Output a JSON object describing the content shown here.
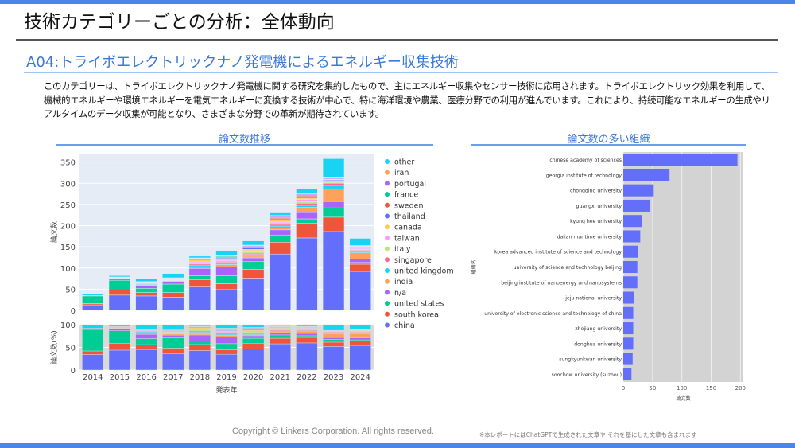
{
  "slide": {
    "title": "技術カテゴリーごとの分析：全体動向",
    "subtitle": "A04:トライボエレクトリックナノ発電機によるエネルギー収集技術",
    "description": "このカテゴリーは、トライボエレクトリックナノ発電機に関する研究を集約したもので、主にエネルギー収集やセンサー技術に応用されます。トライボエレクトリック効果を利用して、機械的エネルギーや環境エネルギーを電気エネルギーに変換する技術が中心で、特に海洋環境や農業、医療分野での利用が進んでいます。これにより、持続可能なエネルギーの生成やリアルタイムのデータ収集が可能となり、さまざまな分野での革新が期待されています。",
    "left_heading": "論文数推移",
    "right_heading": "論文数の多い組織",
    "copyright": "Copyright © Linkers Corporation. All rights reserved.",
    "note": "※本レポートにはChatGPTで生成された文章や それを基にした文章も含まれます",
    "accent_color": "#4a86e8"
  },
  "chart_data": [
    {
      "type": "bar",
      "stacked": true,
      "xlabel": "発表年",
      "ylabel": "論文数",
      "ylim": [
        0,
        370
      ],
      "yticks": [
        0,
        50,
        100,
        150,
        200,
        250,
        300,
        350
      ],
      "categories": [
        "2014",
        "2015",
        "2016",
        "2017",
        "2018",
        "2019",
        "2020",
        "2021",
        "2022",
        "2023",
        "2024"
      ],
      "legend_placement": "right",
      "percent_panel": {
        "ylabel": "論文数(%)",
        "ylim": [
          0,
          100
        ],
        "yticks": [
          0,
          50,
          100
        ]
      },
      "series": [
        {
          "name": "china",
          "color": "#636efa",
          "values": [
            13,
            36,
            34,
            31,
            55,
            49,
            76,
            133,
            171,
            186,
            92
          ]
        },
        {
          "name": "south korea",
          "color": "#ef553b",
          "values": [
            3,
            12,
            8,
            11,
            17,
            14,
            21,
            28,
            35,
            34,
            17
          ]
        },
        {
          "name": "united states",
          "color": "#00cc96",
          "values": [
            18,
            23,
            10,
            20,
            10,
            19,
            18,
            17,
            10,
            22,
            4
          ]
        },
        {
          "name": "n/a",
          "color": "#ab63fa",
          "values": [
            1,
            4,
            7,
            5,
            17,
            20,
            9,
            12,
            15,
            15,
            8
          ]
        },
        {
          "name": "india",
          "color": "#ffa15a",
          "values": [
            0,
            1,
            2,
            2,
            4,
            6,
            4,
            5,
            12,
            30,
            15
          ]
        },
        {
          "name": "united kingdom",
          "color": "#19d3f3",
          "values": [
            0,
            0,
            2,
            1,
            4,
            3,
            4,
            4,
            5,
            8,
            3
          ]
        },
        {
          "name": "singapore",
          "color": "#ff6692",
          "values": [
            0,
            1,
            1,
            1,
            3,
            3,
            3,
            4,
            5,
            5,
            3
          ]
        },
        {
          "name": "italy",
          "color": "#b6e880",
          "values": [
            0,
            0,
            1,
            1,
            3,
            3,
            3,
            4,
            4,
            2,
            2
          ]
        },
        {
          "name": "taiwan",
          "color": "#ff97ff",
          "values": [
            0,
            1,
            1,
            1,
            3,
            3,
            3,
            3,
            5,
            2,
            2
          ]
        },
        {
          "name": "canada",
          "color": "#fecb52",
          "values": [
            0,
            0,
            0,
            1,
            3,
            2,
            3,
            3,
            3,
            2,
            2
          ]
        },
        {
          "name": "thailand",
          "color": "#636efa",
          "values": [
            0,
            0,
            0,
            1,
            2,
            2,
            3,
            3,
            3,
            2,
            1
          ]
        },
        {
          "name": "sweden",
          "color": "#ef553b",
          "values": [
            0,
            1,
            1,
            1,
            1,
            2,
            2,
            2,
            2,
            1,
            1
          ]
        },
        {
          "name": "france",
          "color": "#00cc96",
          "values": [
            0,
            0,
            1,
            1,
            1,
            2,
            2,
            2,
            2,
            1,
            1
          ]
        },
        {
          "name": "portugal",
          "color": "#ab63fa",
          "values": [
            0,
            0,
            0,
            0,
            1,
            1,
            2,
            2,
            2,
            2,
            1
          ]
        },
        {
          "name": "iran",
          "color": "#ffa15a",
          "values": [
            0,
            0,
            0,
            0,
            0,
            1,
            1,
            2,
            2,
            1,
            1
          ]
        },
        {
          "name": "other",
          "color": "#19d3f3",
          "values": [
            3,
            3,
            7,
            10,
            4,
            11,
            10,
            6,
            10,
            45,
            17
          ]
        }
      ]
    },
    {
      "type": "bar",
      "orientation": "horizontal",
      "xlabel": "論文数",
      "ylabel": "組織名",
      "xlim": [
        0,
        205
      ],
      "xticks": [
        0,
        50,
        100,
        150,
        200
      ],
      "color": "#636efa",
      "categories": [
        "chinese academy of sciences",
        "georgia institute of technology",
        "chongqing university",
        "guangxi university",
        "kyung hee university",
        "dalian maritime university",
        "korea advanced institute of science and technology",
        "university of science and technology beijing",
        "beijing institute of nanoenergy and nanosystems",
        "jeju national university",
        "university of electronic science and technology of china",
        "zhejiang university",
        "donghua university",
        "sungkyunkwan university",
        "soochow university (suzhou)"
      ],
      "values": [
        195,
        79,
        52,
        45,
        32,
        29,
        25,
        24,
        24,
        18,
        17,
        17,
        17,
        16,
        14
      ]
    }
  ]
}
